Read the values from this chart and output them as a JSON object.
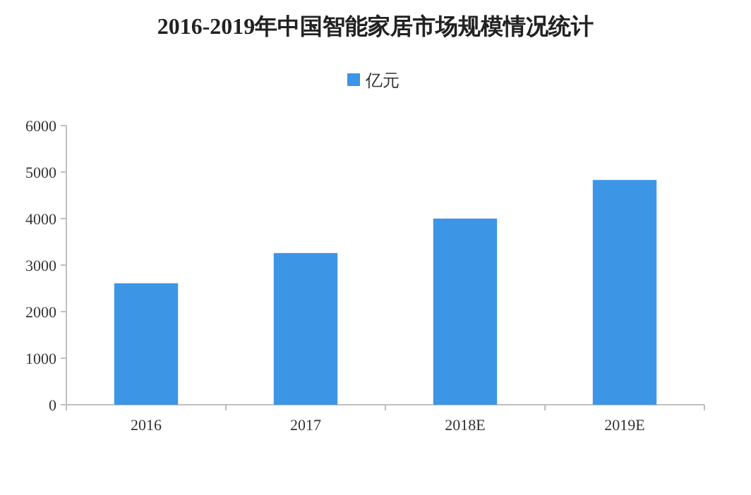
{
  "chart_data": {
    "type": "bar",
    "title": "2016-2019年中国智能家居市场规模情况统计",
    "categories": [
      "2016",
      "2017",
      "2018E",
      "2019E"
    ],
    "series": [
      {
        "name": "亿元",
        "color": "#3d95e6",
        "values": [
          2610,
          3260,
          4000,
          4830
        ]
      }
    ],
    "ylim": [
      0,
      6000
    ],
    "yticks": [
      0,
      1000,
      2000,
      3000,
      4000,
      5000,
      6000
    ],
    "legend": "top",
    "grid": false
  }
}
